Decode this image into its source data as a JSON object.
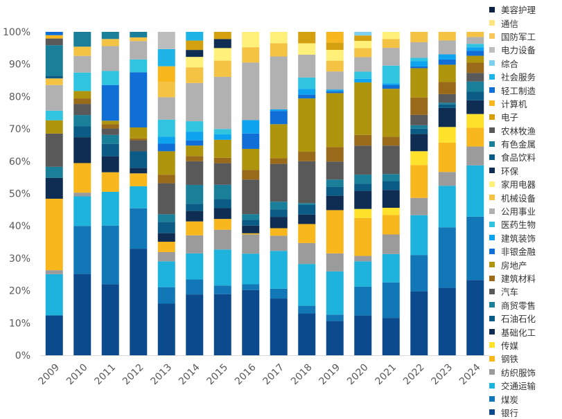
{
  "chart_data": {
    "type": "bar",
    "stacked": true,
    "percent": true,
    "title": "",
    "xlabel": "",
    "ylabel": "",
    "ylim": [
      0,
      100
    ],
    "yticks": [
      "0%",
      "10%",
      "20%",
      "30%",
      "40%",
      "50%",
      "60%",
      "70%",
      "80%",
      "90%",
      "100%"
    ],
    "grid": false,
    "legend_position": "right",
    "categories": [
      "2009",
      "2010",
      "2011",
      "2012",
      "2013",
      "2014",
      "2015",
      "2016",
      "2017",
      "2018",
      "2019",
      "2020",
      "2021",
      "2022",
      "2023",
      "2024"
    ],
    "series": [
      {
        "name": "银行",
        "color": "#0b4a8c",
        "values": [
          12.0,
          22.0,
          20.0,
          29.0,
          15.0,
          17.5,
          17.0,
          17.0,
          15.0,
          11.0,
          9.5,
          11.0,
          10.5,
          18.5,
          19.5,
          22.0
        ]
      },
      {
        "name": "煤炭",
        "color": "#1177b7",
        "values": [
          0,
          13.0,
          16.5,
          11.0,
          4.8,
          4.3,
          2.4,
          1.5,
          2.6,
          2.0,
          1.8,
          8.0,
          10.0,
          10.5,
          17.5,
          18.5
        ]
      },
      {
        "name": "交通运输",
        "color": "#1eb3dc",
        "values": [
          12.4,
          8.0,
          9.5,
          6.0,
          7.5,
          7.5,
          10.0,
          8.0,
          10.0,
          11.0,
          12.0,
          7.0,
          8.0,
          11.5,
          12.0,
          15.0
        ]
      },
      {
        "name": "纺织服饰",
        "color": "#9b9b9b",
        "values": [
          1.2,
          1.0,
          0,
          0,
          2.7,
          5.2,
          5.5,
          5.0,
          4.0,
          5.5,
          5.0,
          1.5,
          5.5,
          5.0,
          4.0,
          5.5
        ]
      },
      {
        "name": "钢铁",
        "color": "#f7b71d",
        "values": [
          21.5,
          8.0,
          5.5,
          3.5,
          3.0,
          4.0,
          3.0,
          0.3,
          2.0,
          5.0,
          12.0,
          10.5,
          5.5,
          9.5,
          8.5,
          5.5
        ]
      },
      {
        "name": "传媒",
        "color": "#ffe22b",
        "values": [
          0,
          0,
          0,
          0,
          0,
          0,
          0,
          0,
          0,
          0,
          0,
          2.5,
          2.0,
          4.0,
          4.5,
          4.0
        ]
      },
      {
        "name": "基础化工",
        "color": "#0f2d52",
        "values": [
          6.3,
          7.0,
          4.5,
          1.5,
          2.5,
          3.0,
          3.0,
          2.0,
          3.0,
          2.5,
          4.0,
          5.0,
          5.0,
          5.0,
          5.5,
          4.0
        ]
      },
      {
        "name": "石油石化",
        "color": "#0a5c86",
        "values": [
          0,
          3.0,
          3.5,
          4.5,
          3.3,
          2.0,
          2.5,
          1.5,
          2.0,
          2.5,
          2.5,
          2.0,
          2.5,
          1.5,
          1.0,
          2.5
        ]
      },
      {
        "name": "商贸零售",
        "color": "#1a7f99",
        "values": [
          3.3,
          3.0,
          2.5,
          0,
          2.2,
          5.5,
          4.0,
          1.5,
          2.0,
          0.5,
          2.0,
          2.5,
          2.0,
          1.0,
          0.5,
          3.0
        ]
      },
      {
        "name": "汽车",
        "color": "#595959",
        "values": [
          10.0,
          3.0,
          1.8,
          3.0,
          9.0,
          6.8,
          6.0,
          9.0,
          10.0,
          11.0,
          5.0,
          8.0,
          8.0,
          3.0,
          2.5,
          2.5
        ]
      },
      {
        "name": "建筑材料",
        "color": "#996a19",
        "values": [
          0,
          1.5,
          1.2,
          0.5,
          2.5,
          1.5,
          1.5,
          2.5,
          1.5,
          2.5,
          4.0,
          3.0,
          2.5,
          5.0,
          3.5,
          3.0
        ]
      },
      {
        "name": "房地产",
        "color": "#af940d",
        "values": [
          4.0,
          2.0,
          1.0,
          3.0,
          6.8,
          3.0,
          5.0,
          5.5,
          9.0,
          14.0,
          15.0,
          14.5,
          13.5,
          8.5,
          5.0,
          2.0
        ]
      },
      {
        "name": "非银金融",
        "color": "#0f6fd6",
        "values": [
          0,
          0,
          10.0,
          15.0,
          2.2,
          1.5,
          0,
          4.0,
          3.5,
          1.0,
          0.5,
          0,
          1.0,
          0.5,
          1.5,
          1.5
        ]
      },
      {
        "name": "建筑装饰",
        "color": "#0ea3ef",
        "values": [
          0,
          0,
          0,
          0,
          2.0,
          2.5,
          1.5,
          3.5,
          0.4,
          1.5,
          0.5,
          1.0,
          0.5,
          1.5,
          1.5,
          1.0
        ]
      },
      {
        "name": "医药生物",
        "color": "#31c4e1",
        "values": [
          2.9,
          5.0,
          4.0,
          3.5,
          5.0,
          3.0,
          1.5,
          0,
          0,
          3.0,
          0,
          2.0,
          5.0,
          1.0,
          0,
          1.0
        ]
      },
      {
        "name": "公用事业",
        "color": "#b1b1b1",
        "values": [
          7.7,
          4.5,
          7.0,
          5.0,
          6.5,
          11.0,
          14.5,
          15.0,
          14.0,
          6.0,
          5.0,
          4.0,
          5.0,
          4.5,
          4.0,
          2.0
        ]
      },
      {
        "name": "机械设备",
        "color": "#f5c344",
        "values": [
          2.0,
          2.5,
          2.0,
          1.0,
          4.5,
          4.5,
          4.5,
          4.0,
          3.5,
          0,
          3.0,
          2.5,
          2.5,
          3.0,
          2.5,
          1.5
        ]
      },
      {
        "name": "家用电器",
        "color": "#fff07a",
        "values": [
          0,
          0,
          0,
          0,
          0,
          3.0,
          3.5,
          4.0,
          3.0,
          3.0,
          3.0,
          2.0,
          2.0,
          0,
          0,
          0
        ]
      },
      {
        "name": "环保",
        "color": "#0f2d52",
        "values": [
          0,
          0,
          0,
          0,
          0,
          2.0,
          2.5,
          0,
          0,
          0,
          0,
          0,
          0,
          0,
          0,
          0
        ]
      },
      {
        "name": "食品饮料",
        "color": "#0a5c86",
        "values": [
          0.8,
          0,
          0,
          0,
          0,
          0,
          0,
          0,
          0,
          0,
          0,
          0,
          0,
          0,
          0,
          0
        ]
      },
      {
        "name": "有色金属",
        "color": "#1a7f99",
        "values": [
          9.2,
          4.0,
          2.0,
          1.5,
          0,
          0,
          0,
          0,
          0,
          0,
          0,
          0,
          0,
          0,
          0,
          0
        ]
      },
      {
        "name": "农林牧渔",
        "color": "#595959",
        "values": [
          2.0,
          0,
          0,
          0,
          0,
          0,
          0,
          0,
          0,
          0,
          0,
          0,
          0,
          0,
          0,
          0
        ]
      },
      {
        "name": "电子",
        "color": "#d4a010",
        "values": [
          0,
          0,
          0,
          0,
          0,
          2.7,
          2.0,
          0,
          0,
          3.0,
          2.0,
          1.5,
          0,
          0,
          0,
          0
        ]
      },
      {
        "name": "计算机",
        "color": "#f7b71d",
        "values": [
          1.0,
          0,
          0,
          0,
          4.5,
          0,
          0,
          0,
          0,
          0,
          3.0,
          0,
          0,
          0,
          0,
          0
        ]
      },
      {
        "name": "轻工制造",
        "color": "#0f6fd6",
        "values": [
          1.0,
          0,
          0,
          0,
          0,
          0,
          0,
          0,
          0,
          0,
          0,
          0,
          0,
          0,
          0,
          0
        ]
      },
      {
        "name": "社会服务",
        "color": "#1fb4e8",
        "values": [
          0,
          0,
          0,
          0,
          5.0,
          2.5,
          0,
          0,
          0,
          0,
          0,
          0,
          0,
          0,
          0,
          0
        ]
      },
      {
        "name": "综合",
        "color": "#7fd0f0",
        "values": [
          0,
          0,
          0,
          0,
          0,
          0,
          0,
          0,
          0,
          0,
          0,
          1.0,
          0,
          0,
          0,
          0
        ]
      },
      {
        "name": "电力设备",
        "color": "#bdbdbd",
        "values": [
          0,
          0,
          0,
          0,
          5.0,
          0,
          0,
          0,
          0,
          0,
          0,
          0,
          0,
          0,
          0,
          0
        ]
      },
      {
        "name": "国防军工",
        "color": "#f8c85a",
        "values": [
          0,
          0,
          0,
          0,
          0,
          0,
          0,
          0,
          0,
          0,
          0,
          0,
          0,
          0,
          0,
          0
        ]
      },
      {
        "name": "通信",
        "color": "#ffe680",
        "values": [
          0,
          0,
          0,
          0,
          0,
          0,
          0,
          0,
          0,
          0,
          0,
          0,
          0,
          0,
          0,
          0
        ]
      },
      {
        "name": "美容护理",
        "color": "#0a2343",
        "values": [
          0,
          0,
          0,
          0,
          0,
          0,
          0,
          0,
          0,
          0,
          0,
          0,
          0,
          0,
          0,
          0
        ]
      }
    ]
  }
}
